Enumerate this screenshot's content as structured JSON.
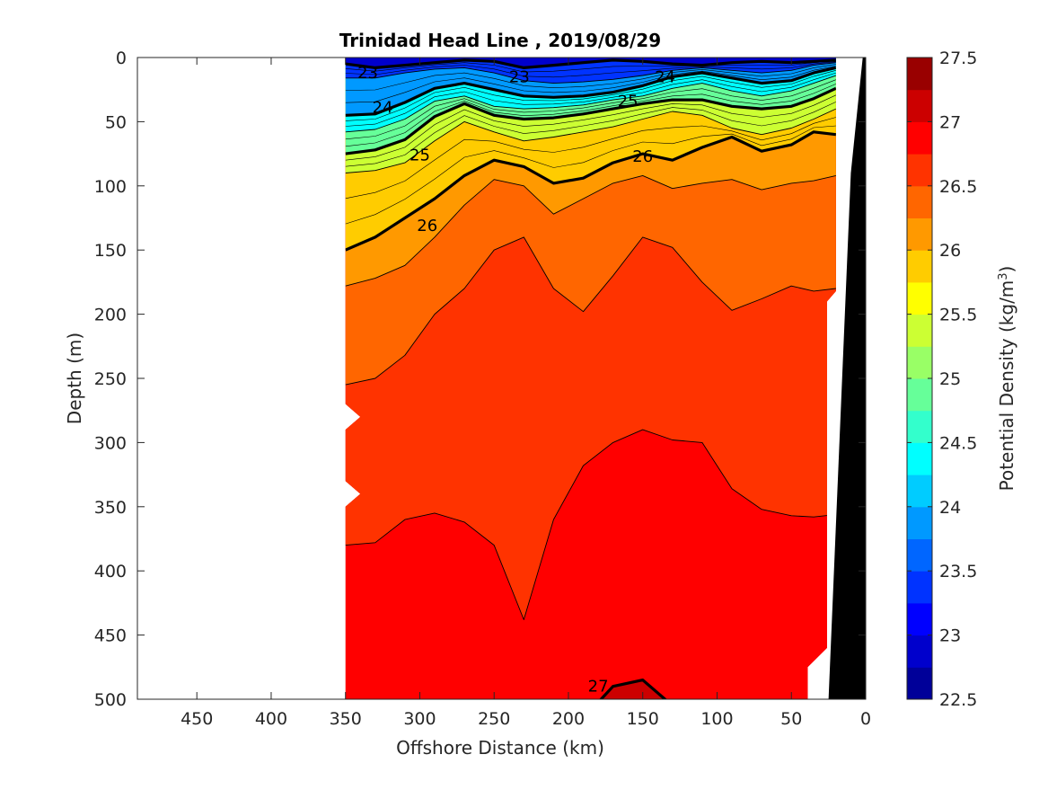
{
  "chart_data": {
    "type": "heatmap",
    "title": "Trinidad Head Line , 2019/08/29",
    "xlabel": "Offshore Distance (km)",
    "ylabel": "Depth (m)",
    "colorbar_label": "Potential Density (kg/m",
    "colorbar_label_sup": "3",
    "colorbar_label_end": ")",
    "xlim": [
      490,
      0
    ],
    "ylim": [
      0,
      500
    ],
    "x_reversed": true,
    "y_reversed": true,
    "x_ticks": [
      450,
      400,
      350,
      300,
      250,
      200,
      150,
      100,
      50,
      0
    ],
    "y_ticks": [
      0,
      50,
      100,
      150,
      200,
      250,
      300,
      350,
      400,
      450,
      500
    ],
    "color_range": [
      22.5,
      27.5
    ],
    "color_step": 0.25,
    "colorbar_ticks": [
      "22.5",
      "23",
      "23.5",
      "24",
      "24.5",
      "25",
      "25.5",
      "26",
      "26.5",
      "27",
      "27.5"
    ],
    "labeled_contour_levels": [
      23,
      24,
      25,
      26,
      27
    ],
    "data_coverage_km": [
      350,
      20
    ],
    "stations_km": [
      350,
      330,
      310,
      290,
      270,
      250,
      230,
      210,
      190,
      170,
      150,
      130,
      110,
      90,
      70,
      50,
      35,
      20
    ],
    "density_contours": [
      {
        "level": 23.0,
        "depths": [
          5,
          8,
          6,
          4,
          2,
          3,
          8,
          6,
          4,
          2,
          3,
          5,
          6,
          4,
          3,
          4,
          3,
          2
        ]
      },
      {
        "level": 23.5,
        "depths": [
          16,
          16,
          12,
          9,
          8,
          12,
          18,
          20,
          19,
          17,
          14,
          10,
          8,
          10,
          12,
          10,
          6,
          4
        ]
      },
      {
        "level": 24.0,
        "depths": [
          45,
          44,
          35,
          24,
          20,
          25,
          30,
          31,
          30,
          27,
          22,
          15,
          12,
          16,
          20,
          18,
          12,
          8
        ]
      },
      {
        "level": 24.5,
        "depths": [
          58,
          56,
          48,
          34,
          30,
          38,
          40,
          39,
          37,
          33,
          30,
          24,
          20,
          26,
          30,
          26,
          20,
          14
        ]
      },
      {
        "level": 25.0,
        "depths": [
          75,
          72,
          64,
          46,
          36,
          45,
          48,
          47,
          44,
          40,
          36,
          33,
          33,
          38,
          40,
          38,
          32,
          24
        ]
      },
      {
        "level": 25.5,
        "depths": [
          90,
          88,
          82,
          65,
          50,
          58,
          65,
          62,
          58,
          54,
          48,
          42,
          45,
          55,
          60,
          55,
          48,
          40
        ]
      },
      {
        "level": 26.0,
        "depths": [
          150,
          140,
          125,
          110,
          92,
          80,
          85,
          98,
          94,
          82,
          75,
          80,
          70,
          62,
          73,
          68,
          58,
          60
        ]
      },
      {
        "level": 26.25,
        "depths": [
          178,
          172,
          162,
          140,
          115,
          95,
          100,
          122,
          110,
          98,
          92,
          102,
          98,
          95,
          103,
          98,
          96,
          92
        ]
      },
      {
        "level": 26.5,
        "depths": [
          255,
          250,
          232,
          200,
          180,
          150,
          140,
          180,
          198,
          170,
          140,
          148,
          175,
          197,
          188,
          178,
          182,
          180
        ]
      },
      {
        "level": 26.75,
        "depths": [
          380,
          378,
          360,
          355,
          362,
          380,
          438,
          360,
          318,
          300,
          290,
          298,
          300,
          336,
          352,
          357,
          358,
          356
        ]
      },
      {
        "level": 27.0,
        "depths": [
          600,
          600,
          600,
          600,
          600,
          600,
          600,
          600,
          515,
          490,
          485,
          505,
          600,
          600,
          600,
          600,
          600,
          600
        ]
      }
    ],
    "contour_labels": [
      {
        "text": "23",
        "x": 335,
        "y": 12
      },
      {
        "text": "23",
        "x": 233,
        "y": 15
      },
      {
        "text": "24",
        "x": 135,
        "y": 15
      },
      {
        "text": "24",
        "x": 325,
        "y": 39
      },
      {
        "text": "25",
        "x": 160,
        "y": 34
      },
      {
        "text": "25",
        "x": 300,
        "y": 76
      },
      {
        "text": "26",
        "x": 150,
        "y": 77
      },
      {
        "text": "26",
        "x": 295,
        "y": 131
      },
      {
        "text": "27",
        "x": 180,
        "y": 490
      }
    ]
  }
}
